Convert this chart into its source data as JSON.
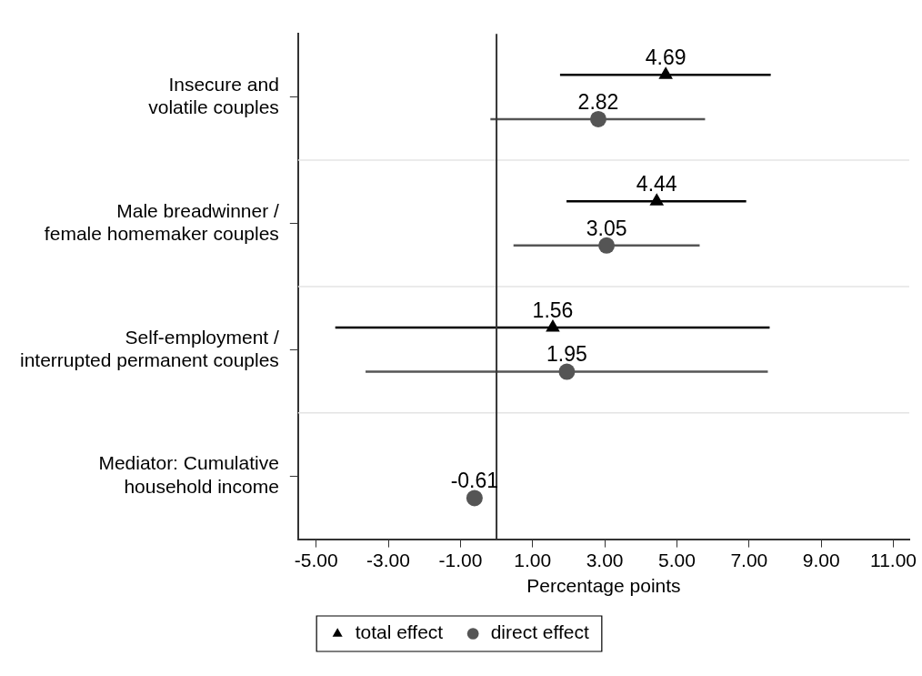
{
  "chart_data": {
    "type": "scatter",
    "orientation": "horizontal",
    "categories": [
      "Insecure and\nvolatile couples",
      "Male breadwinner /\nfemale homemaker couples",
      "Self-employment /\ninterrupted permanent couples",
      "Mediator: Cumulative\nhousehold income"
    ],
    "series": [
      {
        "name": "total effect",
        "color": "#000000",
        "marker": "triangle",
        "values": [
          4.69,
          4.44,
          1.56,
          null
        ],
        "errors": [
          [
            1.76,
            7.6
          ],
          [
            1.94,
            6.92
          ],
          [
            -4.47,
            7.57
          ],
          null
        ]
      },
      {
        "name": "direct effect",
        "color": "#555555",
        "marker": "circle",
        "values": [
          2.82,
          3.05,
          1.95,
          -0.61
        ],
        "errors": [
          [
            -0.17,
            5.78
          ],
          [
            0.47,
            5.63
          ],
          [
            -3.63,
            7.52
          ],
          null
        ]
      }
    ],
    "xlabel": "Percentage points",
    "xlim": [
      -5.5,
      11.44
    ],
    "xticks": [
      {
        "value": -5,
        "label": "-5.00"
      },
      {
        "value": -3,
        "label": "-3.00"
      },
      {
        "value": -1,
        "label": "-1.00"
      },
      {
        "value": 1,
        "label": "1.00"
      },
      {
        "value": 3,
        "label": "3.00"
      },
      {
        "value": 5,
        "label": "5.00"
      },
      {
        "value": 7,
        "label": "7.00"
      },
      {
        "value": 9,
        "label": "9.00"
      },
      {
        "value": 11,
        "label": "11.00"
      }
    ],
    "ref_lines": [
      {
        "axis": "x",
        "value": 0,
        "color": "#333333"
      }
    ],
    "grid": "y",
    "data_labels": true,
    "legend": "bottom"
  }
}
